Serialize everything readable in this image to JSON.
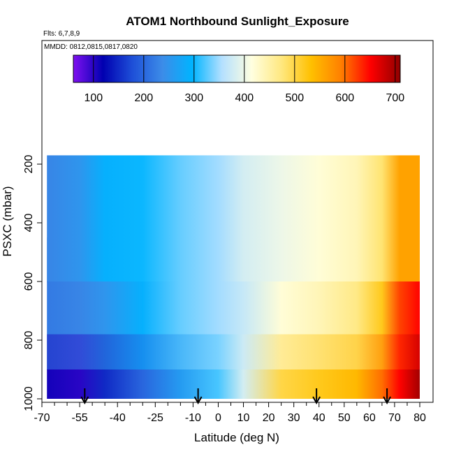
{
  "chart_data": {
    "type": "heatmap",
    "title": "ATOM1 Northbound Sunlight_Exposure",
    "flights_note": "Flts: 6,7,8,9",
    "dates_note": "MMDD: 0812,0815,0817,0820",
    "xlabel": "Latitude (deg N)",
    "ylabel": "PSXC (mbar)",
    "xlim": [
      -70,
      80
    ],
    "ylim": [
      1000,
      100
    ],
    "x_ticks": [
      -70,
      -55,
      -40,
      -25,
      -10,
      0,
      10,
      20,
      30,
      40,
      50,
      60,
      70,
      80
    ],
    "x_tick_labels": [
      "-70",
      "-55",
      "-40",
      "-25",
      "-10",
      "0",
      "10",
      "20",
      "30",
      "40",
      "50",
      "60",
      "70",
      "80"
    ],
    "y_ticks": [
      200,
      400,
      600,
      800,
      1000
    ],
    "y_tick_labels": [
      "200",
      "400",
      "600",
      "800",
      "1000"
    ],
    "colorbar": {
      "range": [
        60,
        710
      ],
      "tick_values": [
        100,
        200,
        300,
        400,
        500,
        600,
        700
      ],
      "tick_labels": [
        "100",
        "200",
        "300",
        "400",
        "500",
        "600",
        "700"
      ],
      "colors": [
        "#7f10f0",
        "#0000b0",
        "#1e50d8",
        "#3c8ce8",
        "#00b4ff",
        "#b4e0ff",
        "#ffffe0",
        "#ffe880",
        "#ffc000",
        "#ff8000",
        "#ff0000",
        "#900000"
      ]
    },
    "data_extent": {
      "lat": [
        -68,
        80
      ],
      "psxc": [
        170,
        1000
      ]
    },
    "gradient_latitudes": [
      -68,
      -55,
      -45,
      -30,
      -15,
      0,
      10,
      25,
      40,
      55,
      65,
      72,
      80
    ],
    "surface_values": [
      110,
      100,
      150,
      200,
      260,
      320,
      380,
      500,
      520,
      540,
      600,
      650,
      700
    ],
    "mid_values": [
      220,
      230,
      250,
      290,
      330,
      350,
      370,
      420,
      440,
      470,
      520,
      620,
      650
    ],
    "upper_values": [
      230,
      250,
      290,
      300,
      330,
      350,
      380,
      400,
      420,
      440,
      480,
      560,
      560
    ],
    "flight_arrow_latitudes": [
      -53,
      -8,
      39,
      67
    ]
  }
}
